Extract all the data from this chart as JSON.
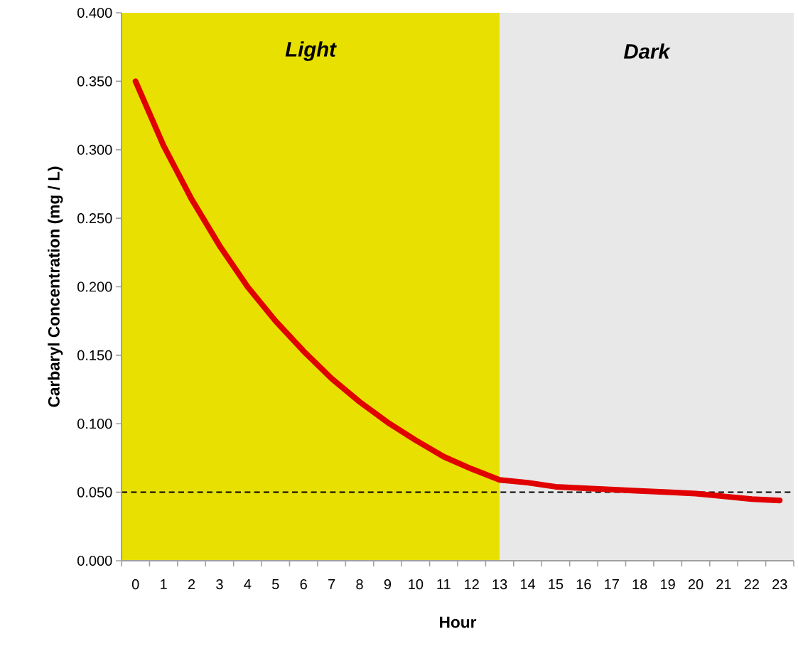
{
  "chart_data": {
    "type": "line",
    "xlabel": "Hour",
    "ylabel": "Carbaryl Concentration (mg / L)",
    "categories": [
      "0",
      "1",
      "2",
      "3",
      "4",
      "5",
      "6",
      "7",
      "8",
      "9",
      "10",
      "11",
      "12",
      "13",
      "14",
      "15",
      "16",
      "17",
      "18",
      "19",
      "20",
      "21",
      "22",
      "23"
    ],
    "series": [
      {
        "color": "#e00000",
        "values": [
          0.35,
          0.303,
          0.264,
          0.23,
          0.2,
          0.175,
          0.153,
          0.133,
          0.116,
          0.101,
          0.088,
          0.076,
          0.067,
          0.059,
          0.057,
          0.054,
          0.053,
          0.052,
          0.051,
          0.05,
          0.049,
          0.047,
          0.045,
          0.044
        ]
      }
    ],
    "ylim": [
      0,
      0.4
    ],
    "yticks": [
      {
        "value": 0,
        "label": "0.000"
      },
      {
        "value": 0.05,
        "label": "0.050"
      },
      {
        "value": 0.1,
        "label": "0.100"
      },
      {
        "value": 0.15,
        "label": "0.150"
      },
      {
        "value": 0.2,
        "label": "0.200"
      },
      {
        "value": 0.25,
        "label": "0.250"
      },
      {
        "value": 0.3,
        "label": "0.300"
      },
      {
        "value": 0.35,
        "label": "0.350"
      },
      {
        "value": 0.4,
        "label": "0.400"
      }
    ],
    "bands": [
      {
        "axis": "x",
        "from": "0",
        "to": "13",
        "label": "Light",
        "color": "#e8e000"
      },
      {
        "axis": "x",
        "from": "13",
        "to": "23",
        "label": "Dark",
        "color": "#e8e8e8"
      }
    ],
    "ref_lines": [
      {
        "axis": "y",
        "value": 0.05,
        "line_style": "dashed",
        "color": "#000000"
      }
    ],
    "grid": false,
    "marker": "none",
    "line_style": "solid"
  }
}
